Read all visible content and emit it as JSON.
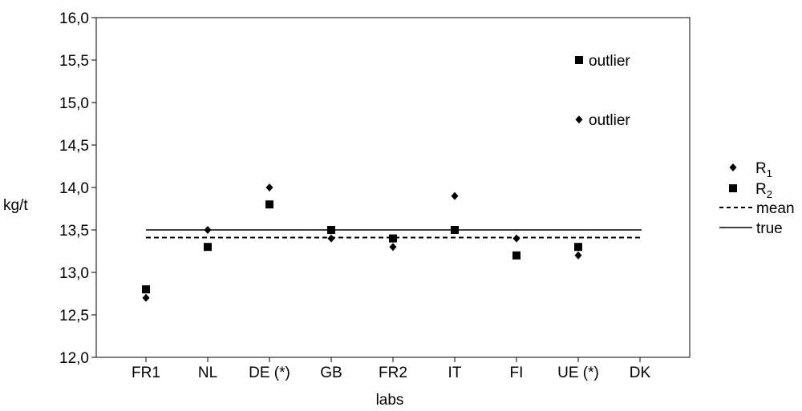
{
  "chart_data": {
    "type": "scatter",
    "xlabel": "labs",
    "ylabel": "kg/t",
    "categories": [
      "FR1",
      "NL",
      "DE (*)",
      "GB",
      "FR2",
      "IT",
      "FI",
      "UE (*)",
      "DK"
    ],
    "ylim": [
      12.0,
      16.0
    ],
    "yticks": [
      "12,0",
      "12,5",
      "13,0",
      "13,5",
      "14,0",
      "14,5",
      "15,0",
      "15,5",
      "16,0"
    ],
    "ytick_values": [
      12.0,
      12.5,
      13.0,
      13.5,
      14.0,
      14.5,
      15.0,
      15.5,
      16.0
    ],
    "grid": false,
    "legend_position": "right",
    "series": [
      {
        "name": "R1",
        "name_base": "R",
        "name_sub": "1",
        "marker": "diamond",
        "values": [
          12.7,
          13.5,
          14.0,
          13.4,
          13.3,
          13.9,
          13.4,
          13.2,
          null
        ]
      },
      {
        "name": "R2",
        "name_base": "R",
        "name_sub": "2",
        "marker": "square",
        "values": [
          12.8,
          13.3,
          13.8,
          13.5,
          13.4,
          13.5,
          13.2,
          13.3,
          null
        ]
      }
    ],
    "reference_lines": [
      {
        "name": "mean",
        "style": "dashed",
        "value": 13.41
      },
      {
        "name": "true",
        "style": "solid",
        "value": 13.5
      }
    ],
    "annotations": [
      {
        "text": "outlier",
        "marker": "square",
        "category": "UE (*)",
        "y": 15.5
      },
      {
        "text": "outlier",
        "marker": "diamond",
        "category": "UE (*)",
        "y": 14.8
      }
    ]
  }
}
